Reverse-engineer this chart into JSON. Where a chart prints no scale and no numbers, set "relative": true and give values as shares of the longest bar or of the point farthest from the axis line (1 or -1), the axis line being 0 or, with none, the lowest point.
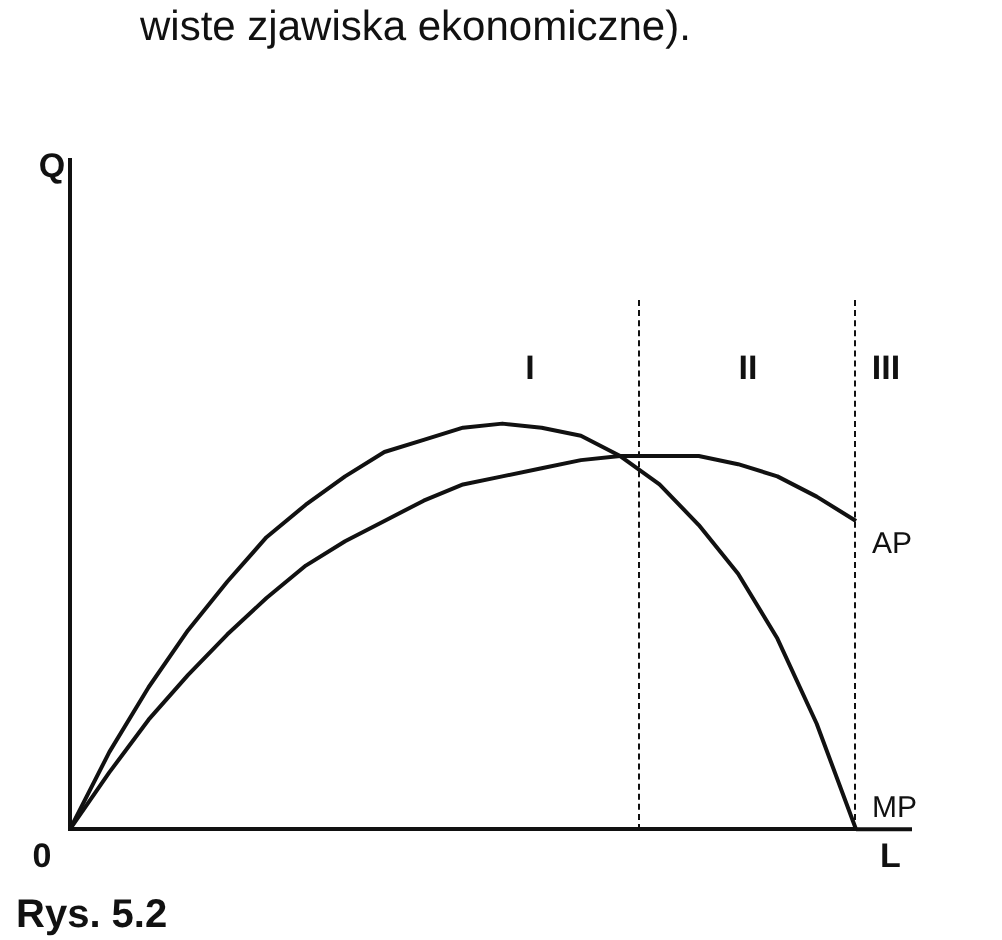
{
  "chart_data": {
    "type": "line",
    "relative": true,
    "xlabel": "L",
    "categories": [
      null,
      null,
      null,
      null,
      null,
      null,
      null,
      null,
      null,
      null,
      null,
      null,
      null,
      null,
      null,
      null,
      null,
      null,
      null,
      null,
      null
    ],
    "grid": false,
    "legend": false,
    "marker": "none",
    "series": [
      {
        "name": "MP",
        "color": "#111111",
        "values": [
          0,
          0.19,
          0.35,
          0.49,
          0.61,
          0.72,
          0.8,
          0.87,
          0.93,
          0.96,
          0.99,
          1,
          0.99,
          0.97,
          0.92,
          0.85,
          0.75,
          0.63,
          0.47,
          0.26,
          0
        ]
      },
      {
        "name": "AP",
        "color": "#111111",
        "values": [
          0,
          0.14,
          0.27,
          0.38,
          0.48,
          0.57,
          0.65,
          0.71,
          0.76,
          0.81,
          0.85,
          0.87,
          0.89,
          0.91,
          0.92,
          0.92,
          0.92,
          0.9,
          0.87,
          0.82,
          0.76
        ]
      }
    ],
    "annotations": [
      "I",
      "II",
      "III",
      "0",
      "wiste zjawiska ekonomiczne).",
      "Rys. 5.2",
      "Q"
    ]
  }
}
